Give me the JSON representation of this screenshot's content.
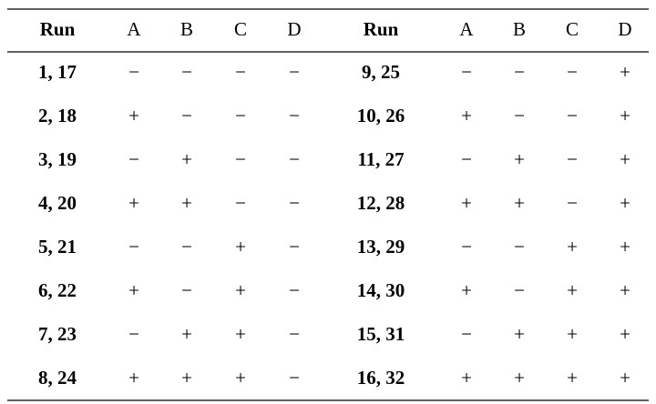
{
  "table": {
    "header": [
      "Run",
      "A",
      "B",
      "C",
      "D",
      "Run",
      "A",
      "B",
      "C",
      "D"
    ],
    "rows": [
      [
        "1, 17",
        "−",
        "−",
        "−",
        "−",
        "9, 25",
        "−",
        "−",
        "−",
        "+"
      ],
      [
        "2, 18",
        "+",
        "−",
        "−",
        "−",
        "10, 26",
        "+",
        "−",
        "−",
        "+"
      ],
      [
        "3, 19",
        "−",
        "+",
        "−",
        "−",
        "11, 27",
        "−",
        "+",
        "−",
        "+"
      ],
      [
        "4, 20",
        "+",
        "+",
        "−",
        "−",
        "12, 28",
        "+",
        "+",
        "−",
        "+"
      ],
      [
        "5, 21",
        "−",
        "−",
        "+",
        "−",
        "13, 29",
        "−",
        "−",
        "+",
        "+"
      ],
      [
        "6, 22",
        "+",
        "−",
        "+",
        "−",
        "14, 30",
        "+",
        "−",
        "+",
        "+"
      ],
      [
        "7, 23",
        "−",
        "+",
        "+",
        "−",
        "15, 31",
        "−",
        "+",
        "+",
        "+"
      ],
      [
        "8, 24",
        "+",
        "+",
        "+",
        "−",
        "16, 32",
        "+",
        "+",
        "+",
        "+"
      ]
    ]
  }
}
